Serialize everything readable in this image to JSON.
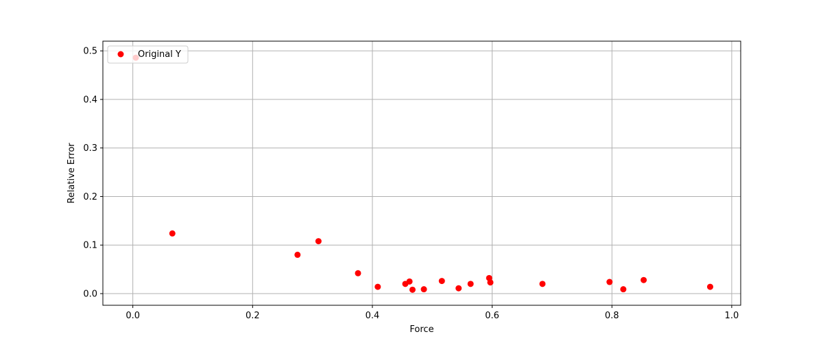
{
  "chart_data": {
    "type": "scatter",
    "title": "",
    "xlabel": "Force",
    "ylabel": "Relative Error",
    "xlim": [
      -0.05,
      1.015
    ],
    "ylim": [
      -0.024,
      0.52
    ],
    "xticks": [
      0.0,
      0.2,
      0.4,
      0.6,
      0.8,
      1.0
    ],
    "xtick_labels": [
      "0.0",
      "0.2",
      "0.4",
      "0.6",
      "0.8",
      "1.0"
    ],
    "yticks": [
      0.0,
      0.1,
      0.2,
      0.3,
      0.4,
      0.5
    ],
    "ytick_labels": [
      "0.0",
      "0.1",
      "0.2",
      "0.3",
      "0.4",
      "0.5"
    ],
    "grid": true,
    "legend_position": "top-left",
    "series": [
      {
        "name": "Original Y",
        "color": "#ff0000",
        "marker": "circle",
        "points": [
          {
            "x": 0.005,
            "y": 0.486
          },
          {
            "x": 0.066,
            "y": 0.124
          },
          {
            "x": 0.275,
            "y": 0.08
          },
          {
            "x": 0.31,
            "y": 0.108
          },
          {
            "x": 0.376,
            "y": 0.042
          },
          {
            "x": 0.409,
            "y": 0.014
          },
          {
            "x": 0.455,
            "y": 0.02
          },
          {
            "x": 0.462,
            "y": 0.025
          },
          {
            "x": 0.467,
            "y": 0.008
          },
          {
            "x": 0.486,
            "y": 0.009
          },
          {
            "x": 0.516,
            "y": 0.026
          },
          {
            "x": 0.544,
            "y": 0.011
          },
          {
            "x": 0.564,
            "y": 0.02
          },
          {
            "x": 0.595,
            "y": 0.032
          },
          {
            "x": 0.597,
            "y": 0.023
          },
          {
            "x": 0.684,
            "y": 0.02
          },
          {
            "x": 0.796,
            "y": 0.024
          },
          {
            "x": 0.819,
            "y": 0.009
          },
          {
            "x": 0.853,
            "y": 0.028
          },
          {
            "x": 0.964,
            "y": 0.014
          }
        ]
      }
    ]
  }
}
